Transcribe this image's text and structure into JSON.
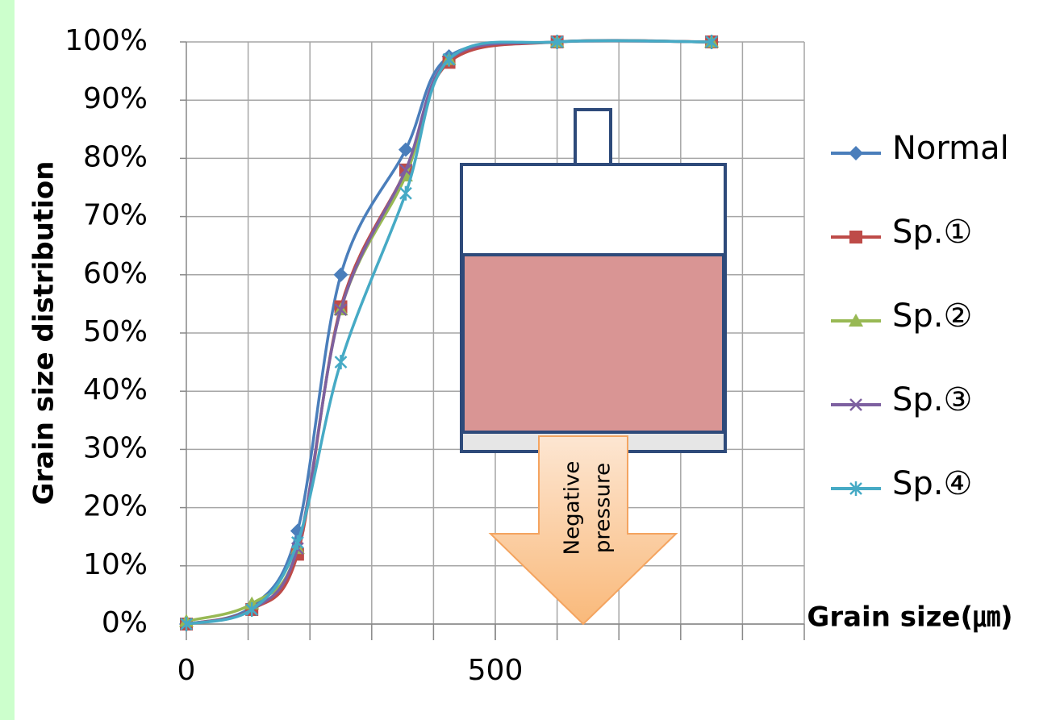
{
  "chart_data": {
    "type": "line",
    "x_label": "Grain size(㎛)",
    "y_label": "Grain size distribution",
    "x": [
      0,
      106,
      180,
      250,
      355,
      425,
      600,
      850
    ],
    "series": [
      {
        "name": "Normal",
        "color": "#4a7ebb",
        "marker": "diamond",
        "values": [
          0,
          3,
          16,
          60,
          81.5,
          97.5,
          100,
          100
        ]
      },
      {
        "name": "Sp.①",
        "color": "#be4b48",
        "marker": "square",
        "values": [
          0,
          2.5,
          12,
          54.5,
          78,
          96.5,
          100,
          100
        ]
      },
      {
        "name": "Sp.②",
        "color": "#98b954",
        "marker": "triangle",
        "values": [
          0.5,
          3.5,
          13,
          54,
          77,
          97,
          100,
          100
        ]
      },
      {
        "name": "Sp.③",
        "color": "#7d60a0",
        "marker": "x",
        "values": [
          0,
          2.5,
          13,
          54,
          78,
          97,
          100,
          100
        ]
      },
      {
        "name": "Sp.④",
        "color": "#46aac5",
        "marker": "star",
        "values": [
          0,
          2.5,
          14,
          45,
          74,
          97,
          100,
          100
        ]
      }
    ],
    "xlim": [
      0,
      1000
    ],
    "xticks": [
      0,
      500
    ],
    "xgrid": [
      100,
      200,
      300,
      400,
      500,
      600,
      700,
      800,
      900,
      1000
    ],
    "ylim": [
      0,
      100
    ],
    "yticks": [
      {
        "value": 0,
        "label": "0%"
      },
      {
        "value": 10,
        "label": "10%"
      },
      {
        "value": 20,
        "label": "20%"
      },
      {
        "value": 30,
        "label": "30%"
      },
      {
        "value": 40,
        "label": "40%"
      },
      {
        "value": 50,
        "label": "50%"
      },
      {
        "value": 60,
        "label": "60%"
      },
      {
        "value": 70,
        "label": "70%"
      },
      {
        "value": 80,
        "label": "80%"
      },
      {
        "value": 90,
        "label": "90%"
      },
      {
        "value": 100,
        "label": "100%"
      }
    ],
    "grid": true,
    "smooth": true,
    "legend": "right",
    "annotation": [
      "Negative",
      "pressure"
    ]
  }
}
